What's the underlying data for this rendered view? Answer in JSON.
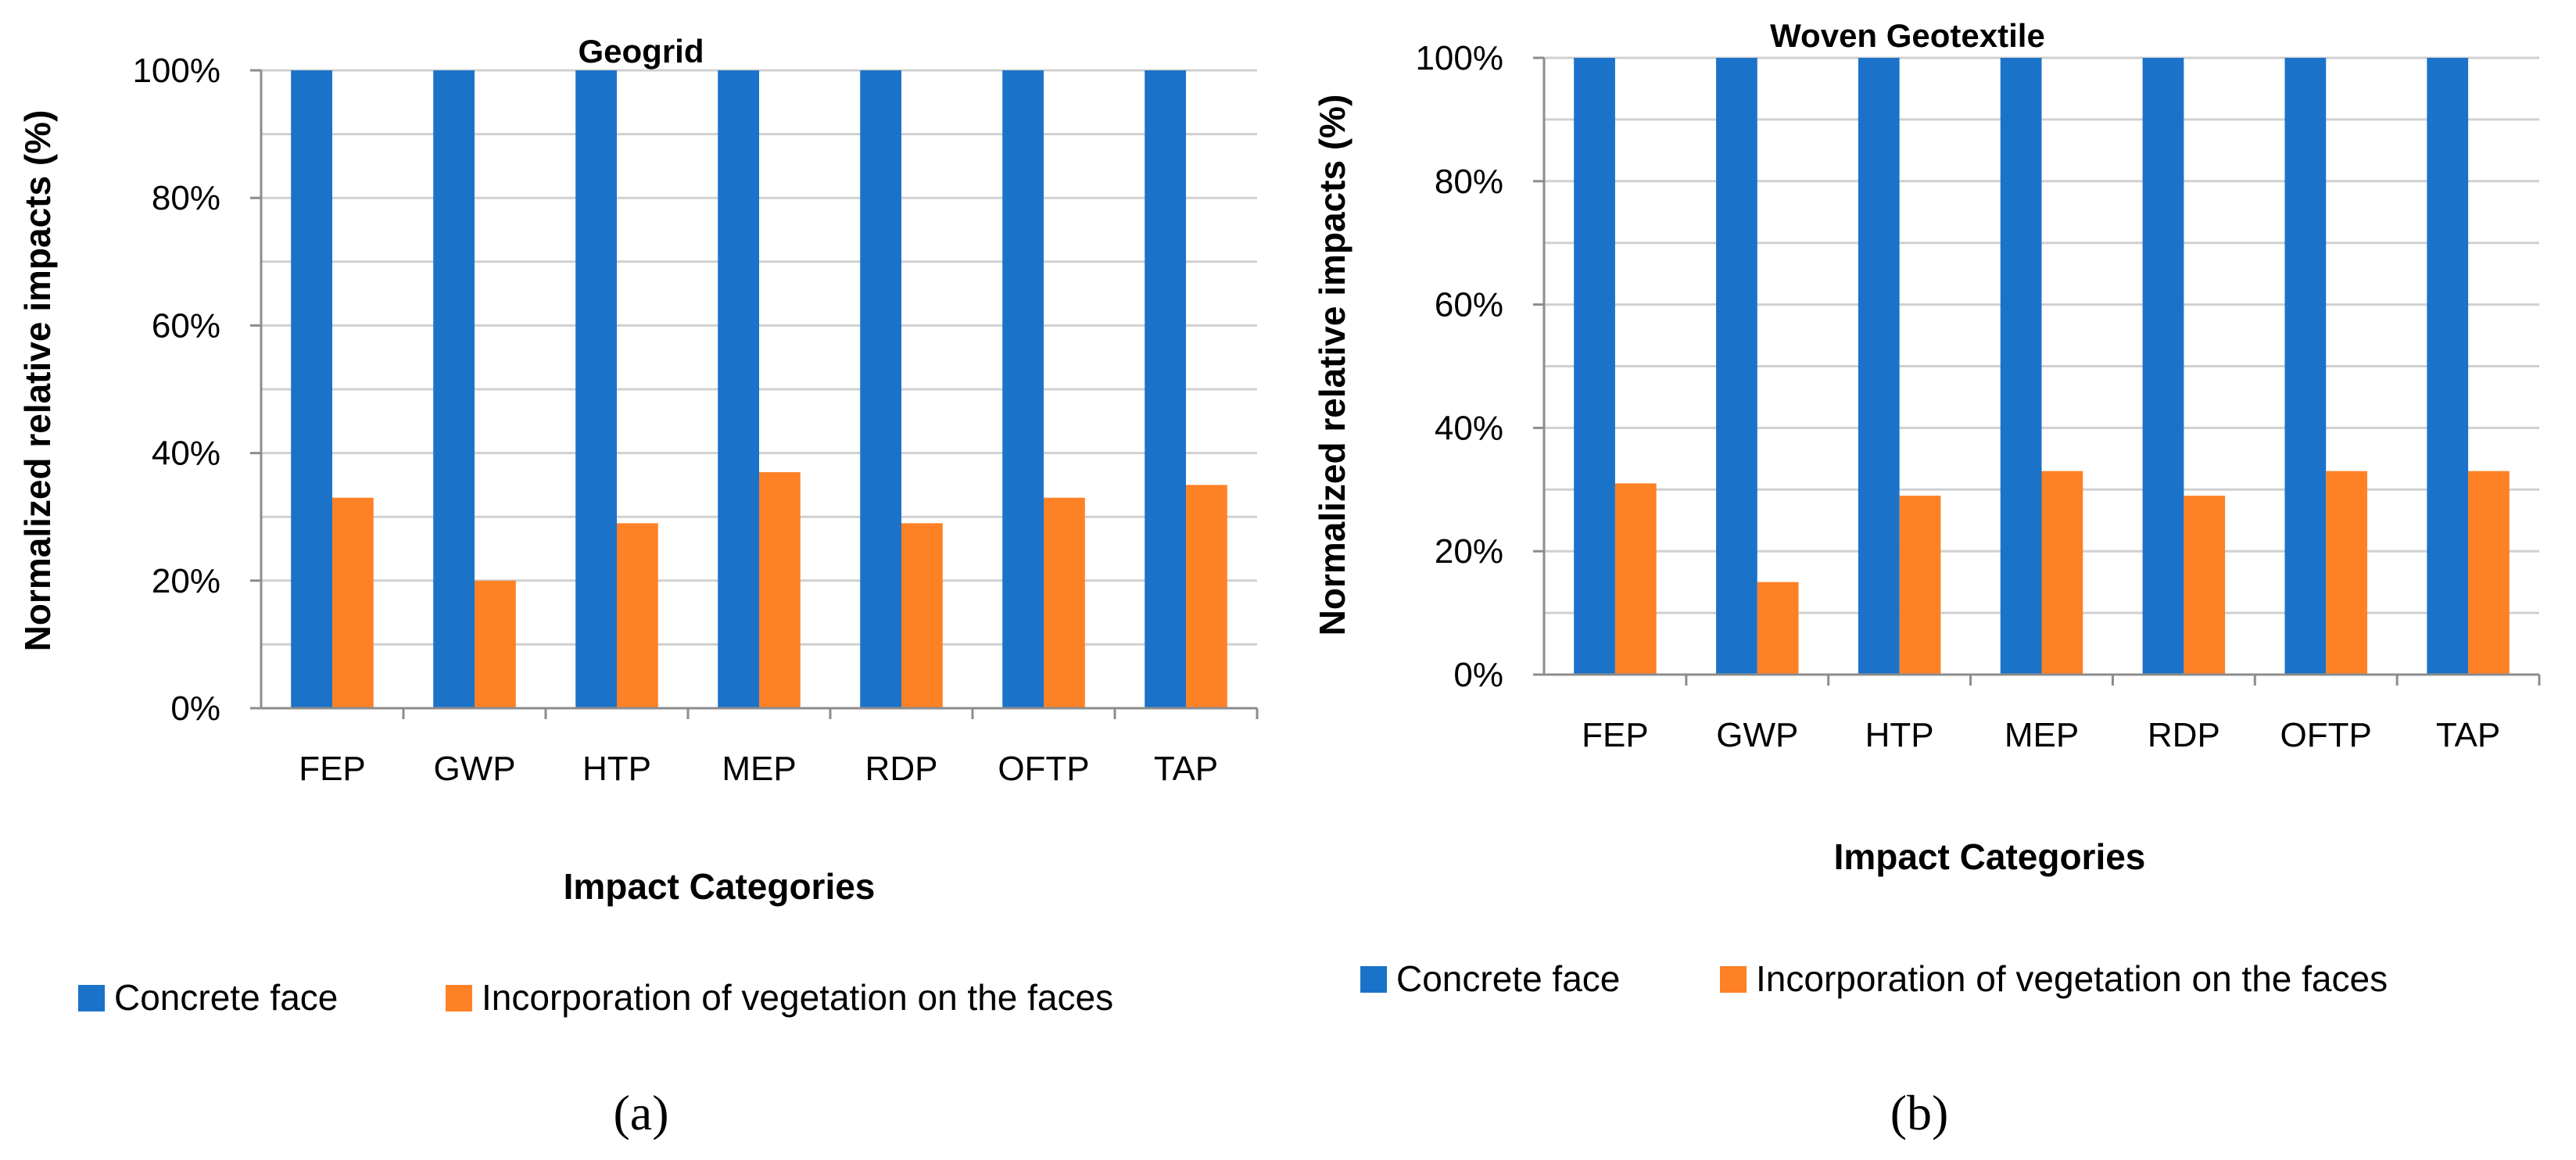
{
  "colors": {
    "concrete": "#1b73c9",
    "vegetation": "#ff8126"
  },
  "chart_data": [
    {
      "type": "bar",
      "title": "Geogrid",
      "xlabel": "Impact Categories",
      "ylabel": "Normalized relative impacts (%)",
      "ylim": [
        0,
        100
      ],
      "yticks": [
        "0%",
        "20%",
        "40%",
        "60%",
        "80%",
        "100%"
      ],
      "categories": [
        "FEP",
        "GWP",
        "HTP",
        "MEP",
        "RDP",
        "OFTP",
        "TAP"
      ],
      "series": [
        {
          "name": "Concrete face",
          "values": [
            100,
            100,
            100,
            100,
            100,
            100,
            100
          ]
        },
        {
          "name": "Incorporation of vegetation on the faces",
          "values": [
            33,
            20,
            29,
            37,
            29,
            33,
            35
          ]
        }
      ],
      "caption": "(a)",
      "legend": "bottom"
    },
    {
      "type": "bar",
      "title": "Woven Geotextile",
      "xlabel": "Impact Categories",
      "ylabel": "Normalized relative impacts (%)",
      "ylim": [
        0,
        100
      ],
      "yticks": [
        "0%",
        "20%",
        "40%",
        "60%",
        "80%",
        "100%"
      ],
      "categories": [
        "FEP",
        "GWP",
        "HTP",
        "MEP",
        "RDP",
        "OFTP",
        "TAP"
      ],
      "series": [
        {
          "name": "Concrete face",
          "values": [
            100,
            100,
            100,
            100,
            100,
            100,
            100
          ]
        },
        {
          "name": "Incorporation of vegetation on the faces",
          "values": [
            31,
            15,
            29,
            33,
            29,
            33,
            33
          ]
        }
      ],
      "caption": "(b)",
      "legend": "bottom"
    }
  ]
}
